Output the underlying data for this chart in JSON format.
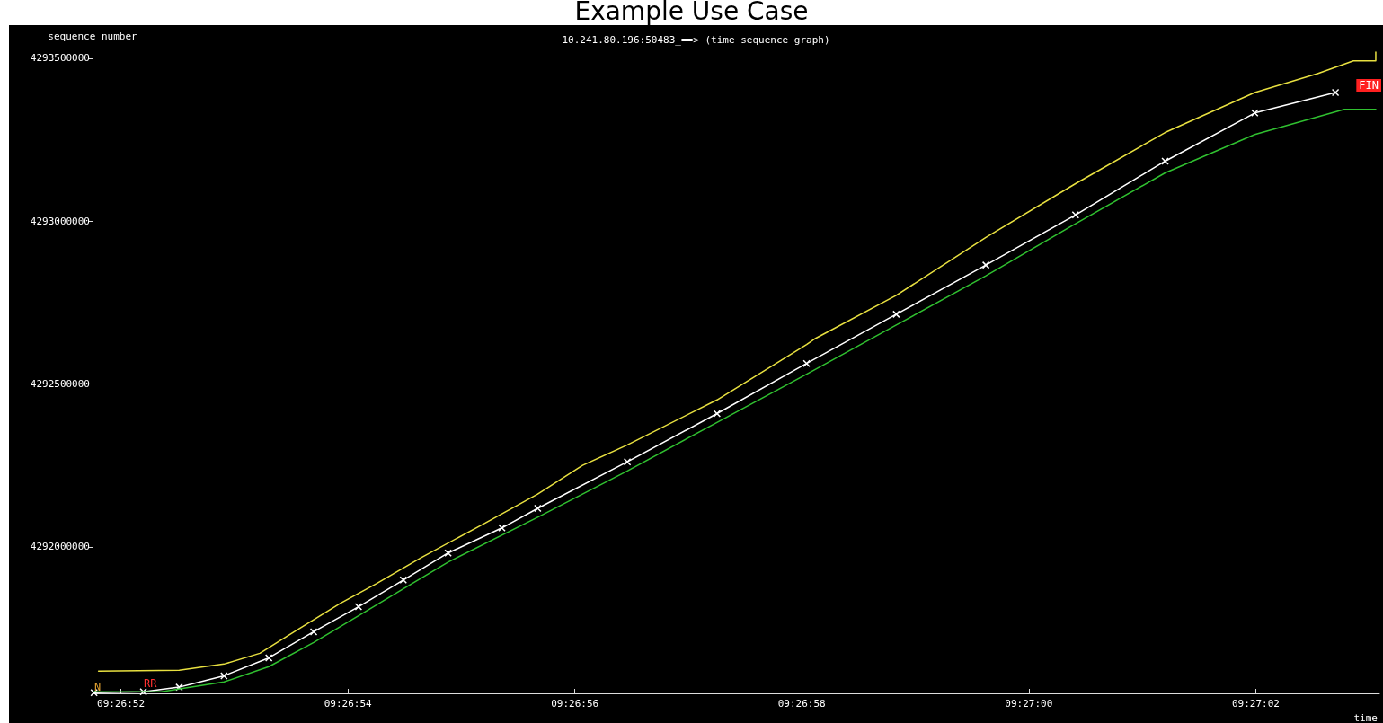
{
  "chart_data": {
    "type": "line",
    "title": "Example Use Case",
    "subtitle": "10.241.80.196:50483_==> (time sequence graph)",
    "xlabel": "time",
    "ylabel": "sequence number",
    "xlim": [
      9.4477083,
      9.4508583
    ],
    "ylim": [
      4291550000,
      4293530000
    ],
    "xticks": [
      {
        "value": 9.4477778,
        "label": "09:26:52"
      },
      {
        "value": 9.4483333,
        "label": "09:26:54"
      },
      {
        "value": 9.4488889,
        "label": "09:26:56"
      },
      {
        "value": 9.4494444,
        "label": "09:26:58"
      },
      {
        "value": 9.45,
        "label": "09:27:00"
      },
      {
        "value": 9.4505556,
        "label": "09:27:02"
      }
    ],
    "yticks": [
      4292000000,
      4292500000,
      4293000000,
      4293500000
    ],
    "grid": false,
    "marker": "none",
    "line_style": "solid",
    "annotations": [
      "N",
      "RR",
      "FIN"
    ],
    "series": [
      {
        "color": "#e8e040",
        "x": [
          9.4477229,
          9.4479204,
          9.4480301,
          9.4481179,
          9.4482056,
          9.4483153,
          9.4484031,
          9.4485128,
          9.4486664,
          9.448798,
          9.4489077,
          9.4490174,
          9.4492368,
          9.4494562,
          9.4494782,
          9.4496756,
          9.449895,
          9.4501144,
          9.4503338,
          9.4505532,
          9.4507068,
          9.4507946,
          9.4508494,
          9.4508494
        ],
        "values": [
          4291618000,
          4291621000,
          4291640000,
          4291673000,
          4291742000,
          4291827000,
          4291887000,
          4291967000,
          4292071000,
          4292162000,
          4292250000,
          4292313000,
          4292451000,
          4292621000,
          4292640000,
          4292772000,
          4292950000,
          4293115000,
          4293272000,
          4293395000,
          4293453000,
          4293492000,
          4293492000,
          4293519000
        ]
      },
      {
        "color": "#ffffff",
        "marker": "cross",
        "x": [
          9.447712,
          9.4478327,
          9.4479204,
          9.4480301,
          9.4481398,
          9.4482495,
          9.4483592,
          9.4484689,
          9.4485786,
          9.4487103,
          9.448798,
          9.4490174,
          9.4492368,
          9.4494562,
          9.4496756,
          9.449895,
          9.4501144,
          9.4503338,
          9.4505532,
          9.4507507
        ],
        "values": [
          4291552000,
          4291555000,
          4291569000,
          4291604000,
          4291659000,
          4291739000,
          4291816000,
          4291898000,
          4291981000,
          4292058000,
          4292118000,
          4292261000,
          4292409000,
          4292563000,
          4292714000,
          4292865000,
          4293019000,
          4293184000,
          4293332000,
          4293395000
        ]
      },
      {
        "color": "#30c030",
        "x": [
          9.447712,
          9.4478765,
          9.4480301,
          9.4481398,
          9.4482495,
          9.4483592,
          9.4484689,
          9.4485786,
          9.448798,
          9.4490174,
          9.4492368,
          9.4494562,
          9.4496756,
          9.449895,
          9.4501144,
          9.4503338,
          9.4505532,
          9.4507726,
          9.4508494
        ],
        "values": [
          4291555000,
          4291555000,
          4291585000,
          4291632000,
          4291706000,
          4291788000,
          4291871000,
          4291953000,
          4292091000,
          4292233000,
          4292382000,
          4292530000,
          4292681000,
          4292832000,
          4292992000,
          4293148000,
          4293266000,
          4293343000,
          4293343000
        ]
      }
    ]
  }
}
